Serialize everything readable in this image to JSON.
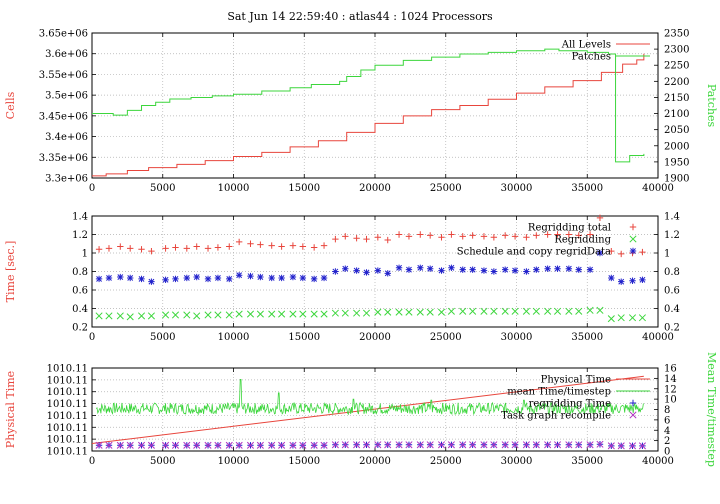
{
  "title": "Sat Jun 14 22:59:40 : atlas44 : 1024 Processors",
  "colors": {
    "red": "#e8453c",
    "green": "#3cd63c",
    "blue": "#2222cc",
    "magenta": "#b030c0",
    "grid": "#b0b0b0"
  },
  "chart_data": [
    {
      "type": "line",
      "xlim": [
        0,
        40000
      ],
      "xticks": [
        "0",
        "5000",
        "10000",
        "15000",
        "20000",
        "25000",
        "30000",
        "35000",
        "40000"
      ],
      "ylabel": "Cells",
      "ylim": [
        3300000,
        3650000
      ],
      "yticks": [
        "3.3e+06",
        "3.35e+06",
        "3.4e+06",
        "3.45e+06",
        "3.5e+06",
        "3.55e+06",
        "3.6e+06",
        "3.65e+06"
      ],
      "y2label": "Patches",
      "y2lim": [
        1900,
        2350
      ],
      "y2ticks": [
        "1900",
        "1950",
        "2000",
        "2050",
        "2100",
        "2150",
        "2200",
        "2250",
        "2300",
        "2350"
      ],
      "grid": true,
      "legend_position": "top-right",
      "series": [
        {
          "name": "All Levels",
          "axis": "left",
          "style": "step",
          "x": [
            0,
            1000,
            2500,
            4000,
            6000,
            8000,
            10000,
            12000,
            14000,
            16000,
            18000,
            20000,
            22000,
            24000,
            26000,
            28000,
            30000,
            32000,
            34000,
            36000,
            37500,
            38500,
            39000
          ],
          "y": [
            3305000,
            3310000,
            3318000,
            3325000,
            3333000,
            3342000,
            3352000,
            3362000,
            3375000,
            3390000,
            3410000,
            3432000,
            3450000,
            3465000,
            3475000,
            3490000,
            3505000,
            3520000,
            3535000,
            3555000,
            3575000,
            3585000,
            3600000
          ]
        },
        {
          "name": "Patches",
          "axis": "right",
          "style": "step",
          "x": [
            0,
            1500,
            2500,
            3500,
            4500,
            5500,
            7000,
            8500,
            10000,
            12000,
            14000,
            15500,
            17500,
            18000,
            19000,
            20000,
            22000,
            24000,
            26000,
            28000,
            30000,
            32000,
            33000,
            35000,
            36500,
            37000,
            37500,
            38000,
            39000
          ],
          "y": [
            2100,
            2095,
            2110,
            2125,
            2135,
            2145,
            2150,
            2155,
            2160,
            2170,
            2180,
            2190,
            2200,
            2215,
            2235,
            2250,
            2265,
            2275,
            2285,
            2290,
            2295,
            2300,
            2295,
            2290,
            2285,
            1950,
            1950,
            1970,
            1975
          ]
        }
      ]
    },
    {
      "type": "scatter",
      "xlim": [
        0,
        40000
      ],
      "xticks": [
        "0",
        "5000",
        "10000",
        "15000",
        "20000",
        "25000",
        "30000",
        "35000",
        "40000"
      ],
      "ylabel": "Time [sec.]",
      "ylim": [
        0.2,
        1.4
      ],
      "yticks": [
        "0.2",
        "0.4",
        "0.6",
        "0.8",
        "1",
        "1.2",
        "1.4"
      ],
      "y2ticks": [
        "0.2",
        "0.4",
        "0.6",
        "0.8",
        "1",
        "1.2",
        "1.4"
      ],
      "grid": true,
      "legend_position": "top-right",
      "series": [
        {
          "name": "Regridding total",
          "marker": "plus",
          "x": [
            500,
            1200,
            2000,
            2700,
            3500,
            4200,
            5200,
            5900,
            6700,
            7400,
            8200,
            8900,
            9700,
            10400,
            11200,
            11900,
            12700,
            13400,
            14200,
            14900,
            15700,
            16400,
            17200,
            17900,
            18700,
            19400,
            20200,
            20900,
            21700,
            22400,
            23200,
            23900,
            24700,
            25400,
            26200,
            26900,
            27700,
            28400,
            29200,
            29900,
            30700,
            31400,
            32200,
            32900,
            33700,
            34400,
            35200,
            35900,
            36700,
            37400,
            38200,
            38900
          ],
          "y": [
            1.04,
            1.05,
            1.07,
            1.05,
            1.04,
            1.02,
            1.05,
            1.06,
            1.05,
            1.07,
            1.05,
            1.06,
            1.07,
            1.12,
            1.1,
            1.09,
            1.08,
            1.07,
            1.08,
            1.07,
            1.06,
            1.08,
            1.15,
            1.18,
            1.16,
            1.15,
            1.17,
            1.14,
            1.2,
            1.18,
            1.2,
            1.19,
            1.17,
            1.2,
            1.18,
            1.19,
            1.18,
            1.17,
            1.19,
            1.18,
            1.17,
            1.19,
            1.2,
            1.2,
            1.2,
            1.19,
            1.2,
            1.38,
            1.02,
            0.99,
            1.0,
            1.01
          ]
        },
        {
          "name": "Regridding",
          "marker": "cross",
          "x": [
            500,
            1200,
            2000,
            2700,
            3500,
            4200,
            5200,
            5900,
            6700,
            7400,
            8200,
            8900,
            9700,
            10400,
            11200,
            11900,
            12700,
            13400,
            14200,
            14900,
            15700,
            16400,
            17200,
            17900,
            18700,
            19400,
            20200,
            20900,
            21700,
            22400,
            23200,
            23900,
            24700,
            25400,
            26200,
            26900,
            27700,
            28400,
            29200,
            29900,
            30700,
            31400,
            32200,
            32900,
            33700,
            34400,
            35200,
            35900,
            36700,
            37400,
            38200,
            38900
          ],
          "y": [
            0.32,
            0.32,
            0.32,
            0.31,
            0.32,
            0.32,
            0.33,
            0.33,
            0.33,
            0.32,
            0.33,
            0.33,
            0.33,
            0.34,
            0.34,
            0.34,
            0.34,
            0.34,
            0.34,
            0.34,
            0.34,
            0.34,
            0.35,
            0.35,
            0.35,
            0.35,
            0.36,
            0.36,
            0.36,
            0.36,
            0.36,
            0.36,
            0.36,
            0.37,
            0.37,
            0.37,
            0.37,
            0.37,
            0.37,
            0.37,
            0.37,
            0.37,
            0.37,
            0.37,
            0.37,
            0.37,
            0.38,
            0.38,
            0.29,
            0.3,
            0.3,
            0.3
          ]
        },
        {
          "name": "Schedule and copy regridData",
          "marker": "star",
          "x": [
            500,
            1200,
            2000,
            2700,
            3500,
            4200,
            5200,
            5900,
            6700,
            7400,
            8200,
            8900,
            9700,
            10400,
            11200,
            11900,
            12700,
            13400,
            14200,
            14900,
            15700,
            16400,
            17200,
            17900,
            18700,
            19400,
            20200,
            20900,
            21700,
            22400,
            23200,
            23900,
            24700,
            25400,
            26200,
            26900,
            27700,
            28400,
            29200,
            29900,
            30700,
            31400,
            32200,
            32900,
            33700,
            34400,
            35200,
            35900,
            36700,
            37400,
            38200,
            38900
          ],
          "y": [
            0.72,
            0.73,
            0.74,
            0.73,
            0.72,
            0.69,
            0.71,
            0.72,
            0.73,
            0.74,
            0.72,
            0.73,
            0.72,
            0.76,
            0.75,
            0.74,
            0.73,
            0.73,
            0.74,
            0.73,
            0.72,
            0.73,
            0.8,
            0.83,
            0.81,
            0.79,
            0.81,
            0.78,
            0.84,
            0.82,
            0.84,
            0.83,
            0.81,
            0.84,
            0.82,
            0.82,
            0.81,
            0.8,
            0.82,
            0.81,
            0.8,
            0.82,
            0.83,
            0.83,
            0.83,
            0.82,
            0.82,
            1.0,
            0.73,
            0.69,
            0.7,
            0.71
          ]
        }
      ]
    },
    {
      "type": "line",
      "xlim": [
        0,
        40000
      ],
      "xticks": [
        "0",
        "5000",
        "10000",
        "15000",
        "20000",
        "25000",
        "30000",
        "35000",
        "40000"
      ],
      "ylabel": "Physical Time",
      "yticks": [
        "1010.11",
        "1010.11",
        "1010.11",
        "1010.11",
        "1010.11",
        "1010.11",
        "1010.11",
        "1010.11"
      ],
      "y2label": "Mean Time/timestep",
      "y2lim": [
        0,
        16
      ],
      "y2ticks": [
        "0",
        "2",
        "4",
        "6",
        "8",
        "10",
        "12",
        "14",
        "16"
      ],
      "grid": true,
      "legend_position": "top-right",
      "series": [
        {
          "name": "Physical Time",
          "axis": "left",
          "style": "line",
          "x": [
            0,
            39000
          ],
          "y_frac": [
            0.09,
            0.9
          ]
        },
        {
          "name": "mean Time/timestep",
          "axis": "right",
          "style": "noisy-line",
          "base": 8.2,
          "noise": 1.1,
          "spikes": [
            {
              "x": 10500,
              "y": 13.8
            },
            {
              "x": 13200,
              "y": 11.2
            },
            {
              "x": 18500,
              "y": 10.0
            },
            {
              "x": 24000,
              "y": 9.8
            },
            {
              "x": 30500,
              "y": 9.8
            }
          ]
        },
        {
          "name": "regridding Time",
          "axis": "right",
          "marker": "plus",
          "x": [
            500,
            1200,
            2000,
            2700,
            3500,
            4200,
            5200,
            5900,
            6700,
            7400,
            8200,
            8900,
            9700,
            10400,
            11200,
            11900,
            12700,
            13400,
            14200,
            14900,
            15700,
            16400,
            17200,
            17900,
            18700,
            19400,
            20200,
            20900,
            21700,
            22400,
            23200,
            23900,
            24700,
            25400,
            26200,
            26900,
            27700,
            28400,
            29200,
            29900,
            30700,
            31400,
            32200,
            32900,
            33700,
            34400,
            35200,
            35900,
            36700,
            37400,
            38200,
            38900
          ],
          "y": [
            1.1,
            1.1,
            1.1,
            1.1,
            1.1,
            1.1,
            1.1,
            1.1,
            1.1,
            1.1,
            1.1,
            1.1,
            1.1,
            1.1,
            1.1,
            1.1,
            1.1,
            1.1,
            1.1,
            1.1,
            1.1,
            1.1,
            1.2,
            1.2,
            1.2,
            1.2,
            1.2,
            1.2,
            1.2,
            1.2,
            1.2,
            1.2,
            1.2,
            1.2,
            1.2,
            1.2,
            1.2,
            1.2,
            1.2,
            1.2,
            1.2,
            1.2,
            1.2,
            1.2,
            1.2,
            1.2,
            1.2,
            1.3,
            1.0,
            1.0,
            1.0,
            1.0
          ]
        },
        {
          "name": "Task graph recompile",
          "axis": "right",
          "marker": "cross",
          "x": [
            500,
            1200,
            2000,
            2700,
            3500,
            4200,
            5200,
            5900,
            6700,
            7400,
            8200,
            8900,
            9700,
            10400,
            11200,
            11900,
            12700,
            13400,
            14200,
            14900,
            15700,
            16400,
            17200,
            17900,
            18700,
            19400,
            20200,
            20900,
            21700,
            22400,
            23200,
            23900,
            24700,
            25400,
            26200,
            26900,
            27700,
            28400,
            29200,
            29900,
            30700,
            31400,
            32200,
            32900,
            33700,
            34400,
            35200,
            35900,
            36700,
            37400,
            38200,
            38900
          ],
          "y": [
            1.1,
            1.1,
            1.1,
            1.1,
            1.1,
            1.1,
            1.1,
            1.1,
            1.1,
            1.1,
            1.1,
            1.1,
            1.1,
            1.1,
            1.1,
            1.1,
            1.1,
            1.1,
            1.1,
            1.1,
            1.1,
            1.1,
            1.2,
            1.2,
            1.2,
            1.2,
            1.2,
            1.2,
            1.2,
            1.2,
            1.2,
            1.2,
            1.2,
            1.2,
            1.2,
            1.2,
            1.2,
            1.2,
            1.2,
            1.2,
            1.2,
            1.2,
            1.2,
            1.2,
            1.2,
            1.2,
            1.2,
            1.3,
            1.0,
            1.0,
            1.0,
            1.0
          ]
        }
      ]
    }
  ]
}
